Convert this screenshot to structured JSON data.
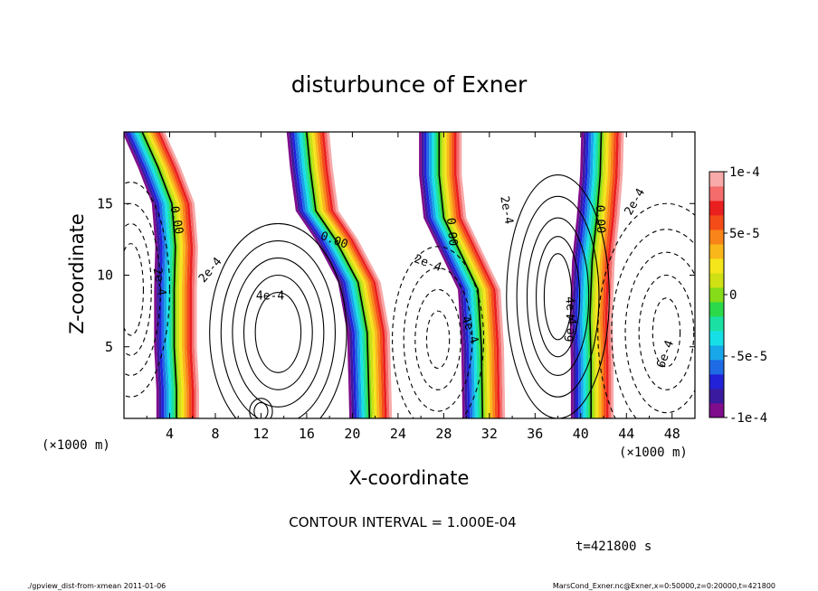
{
  "chart_data": {
    "type": "heatmap",
    "title": "disturbunce of Exner",
    "xlabel": "X-coordinate",
    "ylabel": "Z-coordinate",
    "x_unit_label": "(×1000 m)",
    "y_unit_label": "(×1000 m)",
    "xlim": [
      0,
      50
    ],
    "ylim": [
      0,
      20
    ],
    "x_ticks": [
      4,
      8,
      12,
      16,
      20,
      24,
      28,
      32,
      36,
      40,
      44,
      48
    ],
    "x_tick_labels": [
      "4",
      "8",
      "12",
      "16",
      "20",
      "24",
      "28",
      "32",
      "36",
      "40",
      "44",
      "48"
    ],
    "y_ticks": [
      5,
      10,
      15
    ],
    "y_tick_labels": [
      "5",
      "10",
      "15"
    ],
    "colorbar": {
      "range": [
        -0.0001,
        0.0001
      ],
      "labels": [
        "1e-4",
        "5e-5",
        "0",
        "-5e-5",
        "-1e-4"
      ],
      "label_values": [
        0.0001,
        5e-05,
        0,
        -5e-05,
        -0.0001
      ],
      "colors": [
        "#7f0d8c",
        "#3a1a9e",
        "#2222d8",
        "#1f6be6",
        "#18a7e8",
        "#17dfe6",
        "#1be0a4",
        "#2bd94a",
        "#86dc18",
        "#cfe014",
        "#f5e51b",
        "#f9b71a",
        "#f98419",
        "#f44c19",
        "#ea1f1f",
        "#f46c6c",
        "#f8a9a9"
      ]
    },
    "contour_interval": "CONTOUR INTERVAL = 1.000E-04",
    "contour_labels": [
      "0.00",
      "0.00",
      "0.00",
      "0.00",
      "2e-4",
      "2e-4",
      "4e-4",
      "2e-4",
      "4e-4",
      "2e-4",
      "4e-4",
      "6e-4",
      "2e-4",
      "6e-4"
    ],
    "zero_lines": [
      {
        "x": [
          1.6,
          3.0,
          4.2,
          4.5,
          4.4,
          4.4,
          4.6,
          4.6
        ],
        "z": [
          20,
          17.5,
          15.0,
          12.0,
          9.0,
          5.0,
          2.0,
          0
        ]
      },
      {
        "x": [
          16.0,
          16.3,
          16.8,
          18.5,
          20.5,
          21.3,
          21.4,
          21.5
        ],
        "z": [
          20,
          17.5,
          14.5,
          12.5,
          9.5,
          6.0,
          3.0,
          0
        ]
      },
      {
        "x": [
          27.6,
          27.6,
          28.0,
          29.5,
          31.0,
          31.3,
          31.4
        ],
        "z": [
          20,
          17.0,
          14.0,
          11.5,
          9.0,
          5.0,
          0
        ]
      },
      {
        "x": [
          41.8,
          41.7,
          41.4,
          41.0,
          40.8,
          40.9,
          40.9
        ],
        "z": [
          20,
          17.0,
          14.0,
          11.0,
          7.0,
          4.0,
          0
        ]
      }
    ]
  },
  "time_label": "t=421800 s",
  "footer_left": "./gpview_dist-from-xmean  2011-01-06",
  "footer_right": "MarsCond_Exner.nc@Exner,x=0:50000,z=0:20000,t=421800"
}
